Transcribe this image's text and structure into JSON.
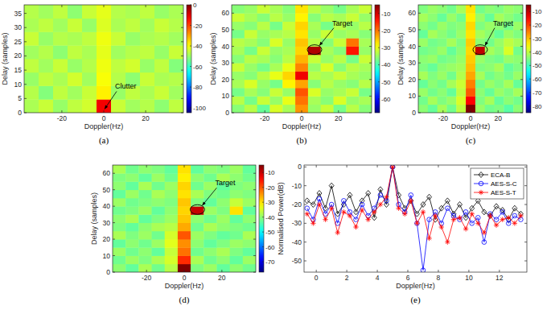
{
  "chart_data": [
    {
      "type": "heatmap",
      "title": "(a)",
      "xlabel": "Doppler(Hz)",
      "ylabel": "Delay (samples)",
      "xlim": [
        -38,
        38
      ],
      "xticks": [
        -20,
        0,
        20
      ],
      "ylim": [
        0,
        38
      ],
      "yticks": [
        0,
        5,
        10,
        15,
        20,
        25,
        30,
        35
      ],
      "zlim": [
        -105,
        0
      ],
      "zticks": [
        0,
        -20,
        -40,
        -60,
        -80,
        -100
      ],
      "annotations": [
        {
          "text": "Clutter",
          "x": 0,
          "y": 1
        }
      ],
      "z": [
        [
          -48,
          -45,
          -50,
          -46,
          -44,
          -12,
          -45,
          -49,
          -47,
          -51,
          -46
        ],
        [
          -47,
          -52,
          -46,
          -49,
          -45,
          -38,
          -50,
          -46,
          -48,
          -45,
          -49
        ],
        [
          -50,
          -46,
          -48,
          -44,
          -49,
          -40,
          -47,
          -51,
          -45,
          -48,
          -47
        ],
        [
          -46,
          -49,
          -45,
          -50,
          -47,
          -41,
          -46,
          -44,
          -50,
          -46,
          -52
        ],
        [
          -49,
          -47,
          -51,
          -46,
          -48,
          -42,
          -49,
          -47,
          -46,
          -50,
          -45
        ],
        [
          -45,
          -50,
          -47,
          -48,
          -46,
          -41,
          -45,
          -50,
          -48,
          -47,
          -49
        ],
        [
          -48,
          -46,
          -49,
          -45,
          -50,
          -43,
          -48,
          -46,
          -49,
          -45,
          -47
        ],
        [
          -47,
          -49,
          -46,
          -51,
          -45,
          -42,
          -47,
          -48,
          -46,
          -50,
          -48
        ]
      ]
    },
    {
      "type": "heatmap",
      "title": "(b)",
      "xlabel": "Doppler(Hz)",
      "ylabel": "Delay (samples)",
      "xlim": [
        -38,
        38
      ],
      "xticks": [
        -20,
        0,
        20
      ],
      "ylim": [
        0,
        65
      ],
      "yticks": [
        0,
        10,
        20,
        30,
        40,
        50,
        60
      ],
      "zlim": [
        -68,
        -5
      ],
      "zticks": [
        -10,
        -20,
        -30,
        -40,
        -50,
        -60
      ],
      "annotations": [
        {
          "text": "Target",
          "x": 7,
          "y": 38
        }
      ],
      "z": [
        [
          -36,
          -33,
          -38,
          -31,
          -34,
          -22,
          -35,
          -32,
          -37,
          -33,
          -36
        ],
        [
          -33,
          -37,
          -32,
          -35,
          -30,
          -20,
          -34,
          -36,
          -31,
          -35,
          -34
        ],
        [
          -37,
          -34,
          -36,
          -32,
          -35,
          -18,
          -31,
          -35,
          -34,
          -32,
          -37
        ],
        [
          -34,
          -31,
          -35,
          -37,
          -28,
          -23,
          -36,
          -33,
          -35,
          -36,
          -33
        ],
        [
          -35,
          -36,
          -33,
          -30,
          -26,
          -12,
          -33,
          -34,
          -32,
          -34,
          -35
        ],
        [
          -32,
          -35,
          -37,
          -34,
          -30,
          -21,
          -35,
          -31,
          -36,
          -33,
          -34
        ],
        [
          -36,
          -33,
          -34,
          -36,
          -33,
          -24,
          -32,
          -35,
          -33,
          -37,
          -32
        ],
        [
          -34,
          -37,
          -32,
          -35,
          -34,
          -26,
          -8,
          -34,
          -36,
          -14,
          -35
        ],
        [
          -33,
          -34,
          -36,
          -31,
          -35,
          -25,
          -33,
          -36,
          -32,
          -20,
          -34
        ],
        [
          -37,
          -32,
          -35,
          -34,
          -33,
          -27,
          -35,
          -32,
          -35,
          -34,
          -36
        ],
        [
          -35,
          -36,
          -33,
          -37,
          -32,
          -26,
          -34,
          -37,
          -33,
          -35,
          -33
        ],
        [
          -32,
          -34,
          -36,
          -33,
          -35,
          -28,
          -36,
          -33,
          -34,
          -32,
          -35
        ],
        [
          -36,
          -35,
          -32,
          -34,
          -36,
          -27,
          -33,
          -35,
          -37,
          -34,
          -32
        ]
      ]
    },
    {
      "type": "heatmap",
      "title": "(c)",
      "xlabel": "Doppler(Hz)",
      "ylabel": "Delay (samples)",
      "xlim": [
        -38,
        38
      ],
      "xticks": [
        -20,
        0,
        20
      ],
      "ylim": [
        0,
        65
      ],
      "yticks": [
        0,
        10,
        20,
        30,
        40,
        50,
        60
      ],
      "zlim": [
        -85,
        -5
      ],
      "zticks": [
        -10,
        -20,
        -30,
        -40,
        -50,
        -60,
        -70,
        -80
      ],
      "annotations": [
        {
          "text": "Target",
          "x": 7,
          "y": 38
        }
      ],
      "z": [
        [
          -44,
          -47,
          -42,
          -46,
          -40,
          -5,
          -43,
          -46,
          -45,
          -48,
          -44
        ],
        [
          -46,
          -42,
          -45,
          -43,
          -38,
          -15,
          -45,
          -42,
          -47,
          -44,
          -46
        ],
        [
          -43,
          -46,
          -44,
          -47,
          -40,
          -22,
          -44,
          -47,
          -43,
          -45,
          -42
        ],
        [
          -47,
          -44,
          -46,
          -42,
          -39,
          -25,
          -46,
          -43,
          -45,
          -42,
          -47
        ],
        [
          -42,
          -45,
          -43,
          -46,
          -41,
          -28,
          -42,
          -46,
          -44,
          -46,
          -43
        ],
        [
          -45,
          -47,
          -44,
          -43,
          -42,
          -30,
          -45,
          -44,
          -42,
          -47,
          -45
        ],
        [
          -44,
          -43,
          -46,
          -45,
          -43,
          -31,
          -43,
          -45,
          -46,
          -43,
          -44
        ],
        [
          -46,
          -45,
          -43,
          -47,
          -44,
          -32,
          -10,
          -42,
          -44,
          -38,
          -46
        ],
        [
          -43,
          -46,
          -45,
          -42,
          -45,
          -31,
          -44,
          -46,
          -43,
          -40,
          -42
        ],
        [
          -47,
          -42,
          -44,
          -46,
          -43,
          -33,
          -42,
          -44,
          -47,
          -43,
          -45
        ],
        [
          -44,
          -46,
          -43,
          -45,
          -44,
          -32,
          -45,
          -43,
          -44,
          -46,
          -43
        ],
        [
          -42,
          -44,
          -47,
          -43,
          -46,
          -34,
          -43,
          -47,
          -42,
          -44,
          -46
        ],
        [
          -45,
          -43,
          -44,
          -46,
          -42,
          -33,
          -46,
          -44,
          -45,
          -43,
          -44
        ]
      ]
    },
    {
      "type": "heatmap",
      "title": "(d)",
      "xlabel": "Doppler(Hz)",
      "ylabel": "Delay (samples)",
      "xlim": [
        -38,
        38
      ],
      "xticks": [
        -20,
        0,
        20
      ],
      "ylim": [
        0,
        65
      ],
      "yticks": [
        0,
        10,
        20,
        30,
        40,
        50,
        60
      ],
      "zlim": [
        -77,
        -5
      ],
      "zticks": [
        -10,
        -20,
        -30,
        -40,
        -50,
        -60,
        -70
      ],
      "annotations": [
        {
          "text": "Target",
          "x": 7,
          "y": 38
        }
      ],
      "z": [
        [
          -40,
          -43,
          -38,
          -42,
          -37,
          -5,
          -41,
          -39,
          -43,
          -40,
          -42
        ],
        [
          -42,
          -39,
          -41,
          -38,
          -35,
          -17,
          -38,
          -42,
          -40,
          -43,
          -39
        ],
        [
          -39,
          -42,
          -40,
          -43,
          -36,
          -22,
          -42,
          -40,
          -38,
          -41,
          -43
        ],
        [
          -43,
          -40,
          -42,
          -39,
          -34,
          -24,
          -40,
          -43,
          -41,
          -39,
          -40
        ],
        [
          -38,
          -41,
          -39,
          -42,
          -35,
          -20,
          -39,
          -41,
          -43,
          -42,
          -38
        ],
        [
          -41,
          -43,
          -40,
          -38,
          -37,
          -26,
          -42,
          -38,
          -40,
          -41,
          -42
        ],
        [
          -40,
          -38,
          -43,
          -41,
          -39,
          -28,
          -40,
          -42,
          -39,
          -43,
          -40
        ],
        [
          -42,
          -41,
          -39,
          -43,
          -40,
          -29,
          -10,
          -39,
          -41,
          -30,
          -43
        ],
        [
          -39,
          -42,
          -41,
          -40,
          -41,
          -28,
          -41,
          -43,
          -40,
          -36,
          -39
        ],
        [
          -43,
          -39,
          -42,
          -38,
          -40,
          -30,
          -38,
          -41,
          -42,
          -40,
          -41
        ],
        [
          -40,
          -43,
          -38,
          -42,
          -39,
          -29,
          -42,
          -39,
          -43,
          -41,
          -40
        ],
        [
          -41,
          -40,
          -43,
          -39,
          -42,
          -31,
          -40,
          -42,
          -38,
          -40,
          -42
        ],
        [
          -38,
          -42,
          -40,
          -41,
          -43,
          -30,
          -43,
          -40,
          -41,
          -39,
          -43
        ]
      ]
    },
    {
      "type": "line",
      "title": "(e)",
      "xlabel": "Doppler(Hz)",
      "ylabel": "Normalised Power(dB)",
      "xlim": [
        -0.8,
        13.8
      ],
      "xticks": [
        0,
        2,
        4,
        6,
        8,
        10,
        12
      ],
      "ylim": [
        -56,
        1
      ],
      "yticks": [
        -50,
        -40,
        -30,
        -20,
        -10,
        0
      ],
      "legend": "top-right",
      "x": [
        -0.6,
        -0.2,
        0.2,
        0.6,
        1.0,
        1.4,
        1.8,
        2.2,
        2.6,
        3.0,
        3.4,
        3.8,
        4.2,
        4.6,
        5.0,
        5.4,
        5.8,
        6.2,
        6.6,
        7.0,
        7.4,
        7.8,
        8.2,
        8.6,
        9.0,
        9.4,
        9.8,
        10.2,
        10.6,
        11.0,
        11.4,
        11.8,
        12.2,
        12.6,
        13.0,
        13.4
      ],
      "series": [
        {
          "name": "ECA-B",
          "color": "#000000",
          "marker": "diamond",
          "values": [
            -18,
            -20,
            -14,
            -22,
            -10,
            -25,
            -20,
            -15,
            -24,
            -18,
            -14,
            -27,
            -12,
            -20,
            0,
            -15,
            -22,
            -18,
            -25,
            -20,
            -16,
            -28,
            -22,
            -18,
            -25,
            -20,
            -27,
            -22,
            -18,
            -24,
            -26,
            -21,
            -23,
            -28,
            -22,
            -25
          ]
        },
        {
          "name": "AES-S-C",
          "color": "#0000ff",
          "marker": "circle",
          "values": [
            -22,
            -28,
            -17,
            -25,
            -20,
            -30,
            -18,
            -24,
            -28,
            -20,
            -26,
            -22,
            -15,
            -18,
            0,
            -20,
            -24,
            -15,
            -30,
            -55,
            -28,
            -24,
            -30,
            -22,
            -26,
            -28,
            -24,
            -30,
            -27,
            -40,
            -25,
            -28,
            -24,
            -30,
            -26,
            -28
          ]
        },
        {
          "name": "AES-S-T",
          "color": "#ff0000",
          "marker": "star",
          "values": [
            -25,
            -30,
            -20,
            -28,
            -22,
            -35,
            -24,
            -26,
            -32,
            -23,
            -28,
            -24,
            -20,
            -16,
            0,
            -22,
            -25,
            -18,
            -30,
            -24,
            -38,
            -26,
            -32,
            -40,
            -28,
            -27,
            -33,
            -25,
            -30,
            -35,
            -26,
            -31,
            -28,
            -27,
            -30,
            -26
          ]
        }
      ]
    }
  ]
}
